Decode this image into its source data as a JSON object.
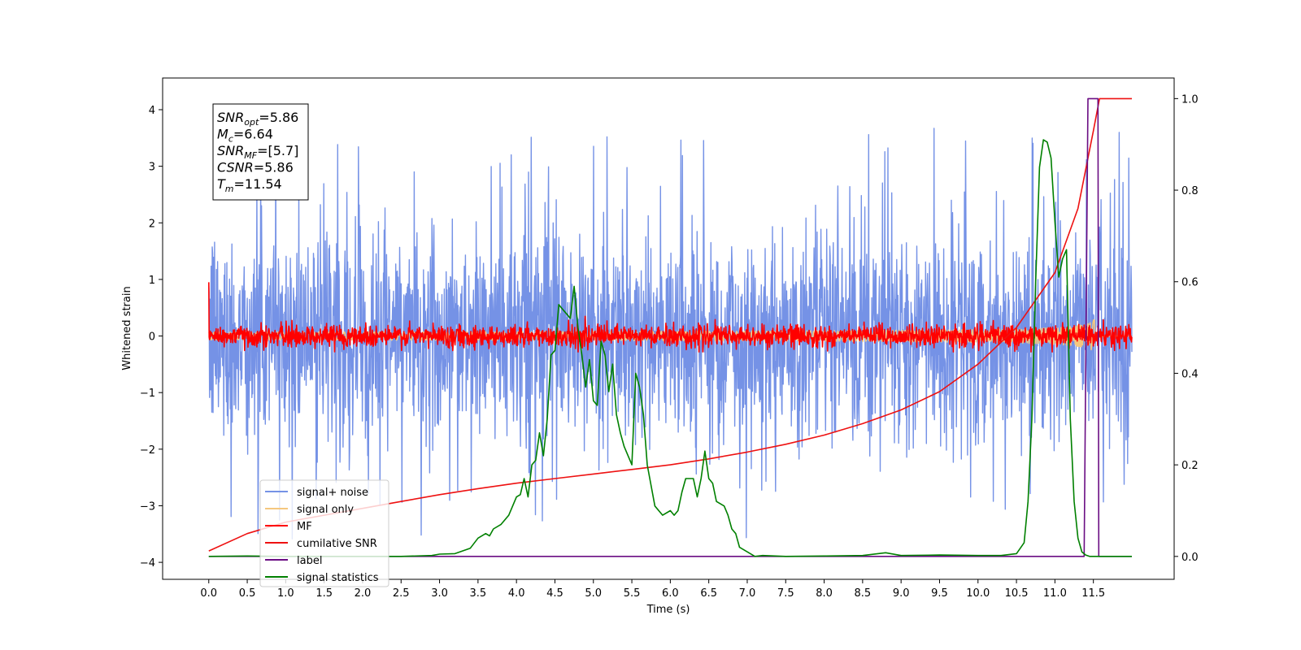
{
  "chart_data": {
    "type": "line",
    "xlabel": "Time (s)",
    "ylabel": "Whitened strain",
    "xlim": [
      -0.6,
      12.55
    ],
    "ylim": [
      -4.3,
      4.56
    ],
    "y2lim": [
      -0.05,
      1.045
    ],
    "grid": false,
    "legend_position": "lower-left",
    "x_ticks": [
      "0.0",
      "0.5",
      "1.0",
      "1.5",
      "2.0",
      "2.5",
      "3.0",
      "3.5",
      "4.0",
      "4.5",
      "5.0",
      "5.5",
      "6.0",
      "6.5",
      "7.0",
      "7.5",
      "8.0",
      "8.5",
      "9.0",
      "9.5",
      "10.0",
      "10.5",
      "11.0",
      "11.5"
    ],
    "y_ticks": [
      "−4",
      "−3",
      "−2",
      "−1",
      "0",
      "1",
      "2",
      "3",
      "4"
    ],
    "y2_ticks": [
      "0.0",
      "0.2",
      "0.4",
      "0.6",
      "0.8",
      "1.0"
    ],
    "annotation": {
      "lines": [
        {
          "base": "SNR",
          "sub": "opt",
          "rest": "=5.86"
        },
        {
          "base": "M",
          "sub": "c",
          "rest": "=6.64"
        },
        {
          "base": "SNR",
          "sub": "MF",
          "rest": "=[5.7]"
        },
        {
          "base": "CSNR",
          "sub": "",
          "rest": "=5.86"
        },
        {
          "base": "T",
          "sub": "m",
          "rest": "=11.54"
        }
      ]
    },
    "series": [
      {
        "name": "signal+ noise",
        "color": "#7592e6",
        "axis": "left",
        "style": "noise",
        "x_range": [
          0.0,
          12.0
        ],
        "envelope": {
          "typical_amplitude": 2.5,
          "max": 4.2,
          "min": -3.9
        }
      },
      {
        "name": "signal only",
        "color": "#f5c77e",
        "axis": "left",
        "style": "chirp",
        "x_range": [
          0.0,
          12.0
        ],
        "peak": {
          "x": 11.54,
          "amplitude": 0.45
        }
      },
      {
        "name": "MF",
        "color": "#ff0000",
        "axis": "left",
        "style": "noise",
        "x_range": [
          0.0,
          12.0
        ],
        "envelope": {
          "typical_amplitude": 0.25,
          "max": 0.55,
          "min": -0.28
        }
      },
      {
        "name": "cumilative SNR",
        "color": "#ee1111",
        "axis": "right",
        "x": [
          0.0,
          0.5,
          1.0,
          1.5,
          2.0,
          2.5,
          3.0,
          3.5,
          4.0,
          4.5,
          5.0,
          5.5,
          6.0,
          6.5,
          7.0,
          7.5,
          8.0,
          8.5,
          9.0,
          9.5,
          10.0,
          10.5,
          11.0,
          11.3,
          11.5,
          11.58,
          12.0
        ],
        "y": [
          0.012,
          0.05,
          0.075,
          0.09,
          0.105,
          0.12,
          0.135,
          0.148,
          0.16,
          0.17,
          0.18,
          0.19,
          0.2,
          0.213,
          0.228,
          0.245,
          0.265,
          0.29,
          0.32,
          0.36,
          0.42,
          0.5,
          0.62,
          0.76,
          0.93,
          1.0,
          1.0
        ]
      },
      {
        "name": "label",
        "color": "#6a0d83",
        "axis": "right",
        "x": [
          0.0,
          11.38,
          11.43,
          11.5,
          11.56,
          11.57,
          12.0
        ],
        "y": [
          0.0,
          0.0,
          1.0,
          1.0,
          1.0,
          0.0,
          0.0
        ]
      },
      {
        "name": "signal statistics",
        "color": "#008000",
        "axis": "right",
        "x": [
          0.0,
          0.5,
          1.0,
          1.5,
          2.0,
          2.5,
          2.9,
          3.0,
          3.2,
          3.4,
          3.5,
          3.6,
          3.65,
          3.7,
          3.8,
          3.9,
          4.0,
          4.05,
          4.1,
          4.15,
          4.2,
          4.25,
          4.3,
          4.35,
          4.4,
          4.45,
          4.5,
          4.55,
          4.6,
          4.65,
          4.7,
          4.75,
          4.8,
          4.85,
          4.9,
          4.95,
          5.0,
          5.05,
          5.1,
          5.15,
          5.2,
          5.25,
          5.3,
          5.35,
          5.4,
          5.5,
          5.55,
          5.6,
          5.65,
          5.7,
          5.8,
          5.9,
          6.0,
          6.05,
          6.1,
          6.15,
          6.2,
          6.3,
          6.35,
          6.4,
          6.45,
          6.5,
          6.55,
          6.6,
          6.7,
          6.75,
          6.8,
          6.85,
          6.9,
          7.0,
          7.1,
          7.2,
          7.5,
          8.0,
          8.5,
          8.8,
          9.0,
          9.5,
          10.0,
          10.3,
          10.4,
          10.5,
          10.6,
          10.65,
          10.7,
          10.75,
          10.8,
          10.85,
          10.9,
          10.95,
          11.0,
          11.05,
          11.1,
          11.15,
          11.2,
          11.25,
          11.3,
          11.35,
          11.4,
          11.45,
          11.5,
          11.55,
          11.6,
          11.7,
          11.8,
          11.9,
          12.0
        ],
        "y": [
          0.0,
          0.001,
          0.0,
          0.0,
          0.0,
          0.0,
          0.002,
          0.005,
          0.006,
          0.018,
          0.04,
          0.05,
          0.045,
          0.06,
          0.07,
          0.09,
          0.13,
          0.135,
          0.17,
          0.13,
          0.2,
          0.21,
          0.27,
          0.22,
          0.3,
          0.44,
          0.45,
          0.55,
          0.54,
          0.53,
          0.52,
          0.59,
          0.5,
          0.44,
          0.37,
          0.43,
          0.34,
          0.33,
          0.47,
          0.44,
          0.36,
          0.42,
          0.31,
          0.27,
          0.24,
          0.2,
          0.4,
          0.37,
          0.31,
          0.2,
          0.11,
          0.09,
          0.1,
          0.09,
          0.1,
          0.14,
          0.17,
          0.17,
          0.13,
          0.17,
          0.23,
          0.17,
          0.16,
          0.12,
          0.11,
          0.09,
          0.06,
          0.05,
          0.02,
          0.01,
          0.0,
          0.002,
          0.0,
          0.001,
          0.002,
          0.008,
          0.002,
          0.003,
          0.002,
          0.002,
          0.004,
          0.006,
          0.03,
          0.12,
          0.3,
          0.6,
          0.85,
          0.91,
          0.905,
          0.87,
          0.73,
          0.61,
          0.65,
          0.67,
          0.3,
          0.12,
          0.04,
          0.01,
          0.003,
          0.0,
          0.0,
          0.0,
          0.0,
          0.0,
          0.0,
          0.0,
          0.0
        ]
      }
    ],
    "legend": [
      {
        "label": "signal+ noise",
        "color": "#7592e6"
      },
      {
        "label": "signal only",
        "color": "#f5c77e"
      },
      {
        "label": "MF",
        "color": "#ff0000"
      },
      {
        "label": "cumilative SNR",
        "color": "#ee1111"
      },
      {
        "label": "label",
        "color": "#6a0d83"
      },
      {
        "label": "signal statistics",
        "color": "#008000"
      }
    ]
  }
}
